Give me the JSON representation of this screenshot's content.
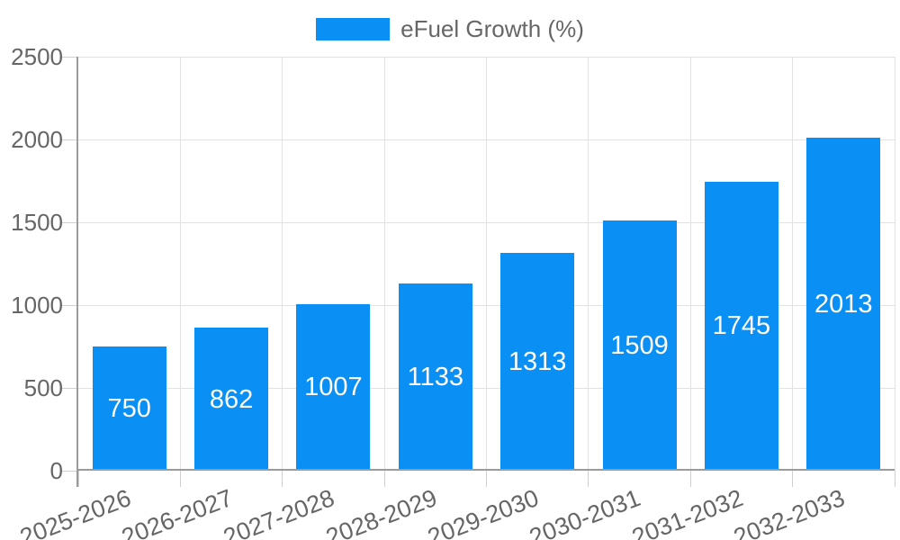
{
  "legend": {
    "position": "top",
    "items": [
      {
        "label": "eFuel Growth (%)",
        "color": "#0a8ff5"
      }
    ]
  },
  "chart_data": {
    "type": "bar",
    "title": "",
    "categories": [
      "2025-2026",
      "2026-2027",
      "2027-2028",
      "2028-2029",
      "2029-2030",
      "2030-2031",
      "2031-2032",
      "2032-2033"
    ],
    "series": [
      {
        "name": "eFuel Growth (%)",
        "values": [
          750,
          862,
          1007,
          1133,
          1313,
          1509,
          1745,
          2013
        ]
      }
    ],
    "value_labels": [
      750,
      862,
      1007,
      1133,
      1313,
      1509,
      1745,
      2013
    ],
    "xlabel": "",
    "ylabel": "",
    "ylim": [
      0,
      2500
    ],
    "yticks": [
      0,
      500,
      1000,
      1500,
      2000,
      2500
    ],
    "grid": true,
    "legend_position": "top",
    "x_tick_rotation_deg": -21,
    "bar_color": "#0a8ff5",
    "value_label_color": "#ffffff"
  },
  "style": {
    "background": "#ffffff",
    "axis_color": "#9b9b9b",
    "grid_color": "#e2e2e2",
    "tick_mark_color": "#cfcfcf",
    "tick_text_color": "#666666"
  }
}
